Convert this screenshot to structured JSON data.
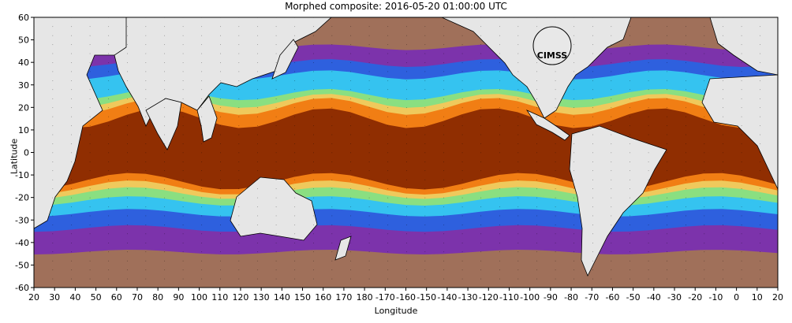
{
  "title": "Morphed composite: 2016-05-20 01:00:00 UTC",
  "xlabel": "Longitude",
  "ylabel": "Latitude",
  "logo_text": "CIMSS",
  "x_ticks": [
    "20",
    "30",
    "40",
    "50",
    "60",
    "70",
    "80",
    "90",
    "100",
    "110",
    "120",
    "130",
    "140",
    "150",
    "160",
    "170",
    "180",
    "-170",
    "-160",
    "-150",
    "-140",
    "-130",
    "-120",
    "-110",
    "-100",
    "-90",
    "-80",
    "-70",
    "-60",
    "-50",
    "-40",
    "-30",
    "-20",
    "-10",
    "0",
    "10",
    "20"
  ],
  "y_ticks": [
    "60",
    "50",
    "40",
    "30",
    "20",
    "10",
    "0",
    "-10",
    "-20",
    "-30",
    "-40",
    "-50",
    "-60"
  ],
  "colors": {
    "land": "#e6e6e6",
    "high": "#8a2a00",
    "orange": "#f07a10",
    "yellow": "#f4c75a",
    "green": "#8fe07a",
    "cyan": "#36c8f0",
    "blue": "#2a63e0",
    "purple": "#7a2fb0",
    "low": "#a0705a"
  }
}
